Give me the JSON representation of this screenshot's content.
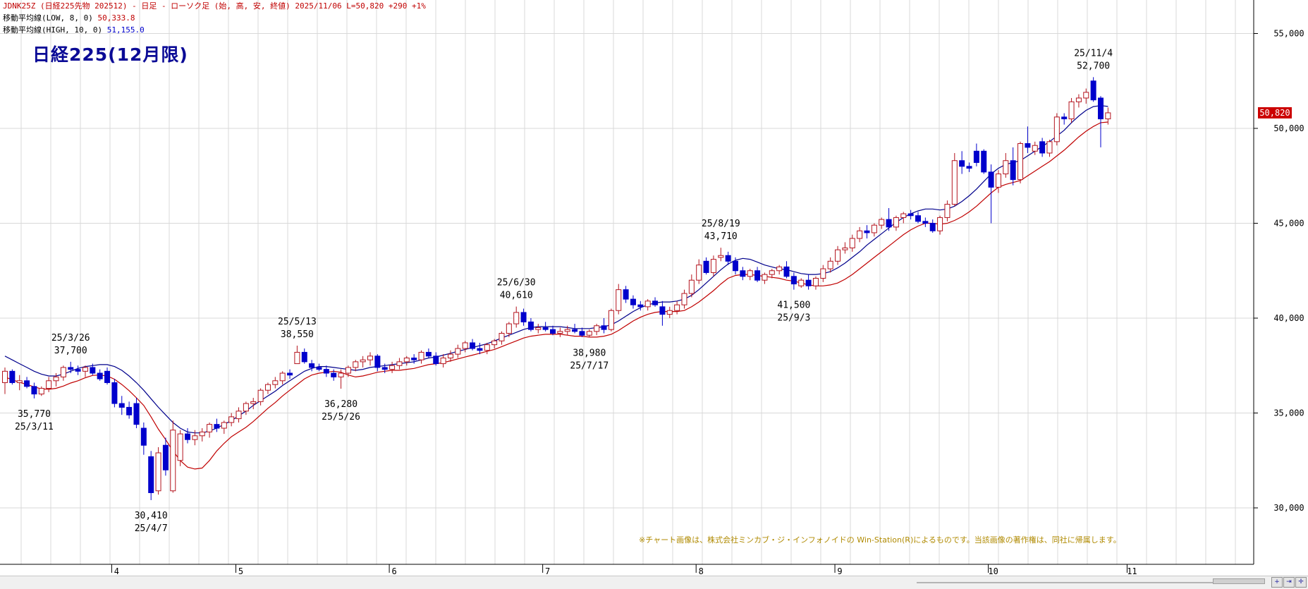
{
  "header": {
    "line1": "JDNK25Z (日経225先物 202512) - 日足 - ローソク足 (始, 高, 安, 終値) 2025/11/06 L=50,820 +290 +1%",
    "line2_label": "移動平均線(LOW, 8, 0)",
    "line2_value": "50,333.8",
    "line3_label": "移動平均線(HIGH, 10, 0)",
    "line3_value": "51,155.0"
  },
  "notice": "※チャート画像は、株式会社ミンカブ・ジ・インフォノイドの Win-Station(R)によるものです。当該画像の著作権は、同社に帰属します。",
  "colors": {
    "up": "#b4141e",
    "down": "#0000cc",
    "ma_low": "#c00000",
    "ma_high": "#00008c",
    "grid": "#d8d8d8",
    "last_price": "#cc0000"
  },
  "toolbar_icons": [
    "zoom-in-icon",
    "scroll-end-icon",
    "crosshair-icon"
  ],
  "chart_data": {
    "type": "candlestick",
    "title": "日経225(12月限)",
    "y_axis": {
      "ticks": [
        30000,
        35000,
        40000,
        45000,
        50000,
        55000
      ],
      "tick_labels": [
        "30,000",
        "35,000",
        "40,000",
        "45,000",
        "50,000",
        "55,000"
      ],
      "position": "right"
    },
    "x_axis": {
      "month_labels": [
        "4",
        "5",
        "6",
        "7",
        "8",
        "9",
        "10",
        "11"
      ]
    },
    "last_price_label": "50,820",
    "last_price": 50820,
    "candles": [
      [
        36600,
        37400,
        36000,
        37200
      ],
      [
        37200,
        37300,
        36500,
        36600
      ],
      [
        36600,
        37000,
        36200,
        36700
      ],
      [
        36700,
        36900,
        36300,
        36400
      ],
      [
        36400,
        36600,
        35770,
        36000
      ],
      [
        36000,
        36400,
        35900,
        36300
      ],
      [
        36300,
        36900,
        36100,
        36700
      ],
      [
        36700,
        37100,
        36400,
        36900
      ],
      [
        36900,
        37500,
        36700,
        37400
      ],
      [
        37400,
        37700,
        37100,
        37300
      ],
      [
        37300,
        37500,
        37000,
        37200
      ],
      [
        37200,
        37500,
        36900,
        37400
      ],
      [
        37400,
        37600,
        37000,
        37100
      ],
      [
        37100,
        37300,
        36700,
        36800
      ],
      [
        37200,
        37400,
        36500,
        36600
      ],
      [
        36600,
        36800,
        35300,
        35500
      ],
      [
        35500,
        35900,
        34900,
        35300
      ],
      [
        35300,
        35600,
        34700,
        34900
      ],
      [
        35500,
        35800,
        34200,
        34400
      ],
      [
        34200,
        34500,
        32800,
        33300
      ],
      [
        32700,
        33000,
        30410,
        30800
      ],
      [
        30900,
        33200,
        30700,
        32900
      ],
      [
        33300,
        33700,
        31700,
        32000
      ],
      [
        30900,
        34600,
        30800,
        34100
      ],
      [
        32500,
        34100,
        32200,
        33900
      ],
      [
        33900,
        34200,
        33400,
        33600
      ],
      [
        33600,
        34100,
        33300,
        33800
      ],
      [
        33800,
        34200,
        33500,
        34000
      ],
      [
        34000,
        34500,
        33700,
        34400
      ],
      [
        34400,
        34700,
        34000,
        34200
      ],
      [
        34200,
        34600,
        33900,
        34500
      ],
      [
        34500,
        35000,
        34300,
        34800
      ],
      [
        34700,
        35300,
        34500,
        35100
      ],
      [
        35100,
        35600,
        34900,
        35500
      ],
      [
        35500,
        35800,
        35200,
        35600
      ],
      [
        35600,
        36300,
        35400,
        36200
      ],
      [
        36200,
        36600,
        36000,
        36500
      ],
      [
        36500,
        36900,
        36300,
        36700
      ],
      [
        36700,
        37200,
        36500,
        37100
      ],
      [
        37100,
        37300,
        36800,
        37000
      ],
      [
        37600,
        38550,
        37600,
        38200
      ],
      [
        38200,
        38400,
        37600,
        37700
      ],
      [
        37600,
        37800,
        37200,
        37400
      ],
      [
        37400,
        37600,
        37200,
        37300
      ],
      [
        37300,
        37500,
        36900,
        37100
      ],
      [
        37100,
        37300,
        36700,
        36900
      ],
      [
        36900,
        37300,
        36280,
        37100
      ],
      [
        37100,
        37500,
        36900,
        37400
      ],
      [
        37400,
        37800,
        37200,
        37700
      ],
      [
        37700,
        38000,
        37400,
        37800
      ],
      [
        37800,
        38200,
        37500,
        38000
      ],
      [
        38000,
        38100,
        37200,
        37400
      ],
      [
        37400,
        37600,
        37100,
        37300
      ],
      [
        37300,
        37700,
        37100,
        37500
      ],
      [
        37500,
        37900,
        37300,
        37700
      ],
      [
        37700,
        38000,
        37500,
        37900
      ],
      [
        37900,
        38100,
        37600,
        37800
      ],
      [
        37800,
        38300,
        37600,
        38200
      ],
      [
        38200,
        38400,
        37900,
        38000
      ],
      [
        38000,
        38200,
        37500,
        37600
      ],
      [
        37600,
        38100,
        37400,
        37900
      ],
      [
        37900,
        38300,
        37700,
        38100
      ],
      [
        38100,
        38600,
        37900,
        38400
      ],
      [
        38400,
        38800,
        38200,
        38700
      ],
      [
        38700,
        38900,
        38300,
        38400
      ],
      [
        38400,
        38700,
        38100,
        38300
      ],
      [
        38300,
        38700,
        38100,
        38600
      ],
      [
        38600,
        38900,
        38400,
        38800
      ],
      [
        38800,
        39300,
        38600,
        39200
      ],
      [
        39200,
        39800,
        39000,
        39700
      ],
      [
        39700,
        40610,
        39500,
        40300
      ],
      [
        40300,
        40500,
        39600,
        39800
      ],
      [
        39800,
        40000,
        39300,
        39400
      ],
      [
        39400,
        39700,
        39200,
        39500
      ],
      [
        39500,
        39800,
        39300,
        39400
      ],
      [
        39400,
        39600,
        39100,
        39200
      ],
      [
        39200,
        39500,
        39000,
        39300
      ],
      [
        39300,
        39600,
        39100,
        39400
      ],
      [
        39400,
        39700,
        39200,
        39300
      ],
      [
        39300,
        39500,
        39000,
        39100
      ],
      [
        39100,
        39400,
        38980,
        39300
      ],
      [
        39300,
        39700,
        39100,
        39600
      ],
      [
        39600,
        40000,
        39200,
        39400
      ],
      [
        39400,
        40500,
        39300,
        40400
      ],
      [
        40400,
        41800,
        40200,
        41500
      ],
      [
        41500,
        41700,
        40800,
        41000
      ],
      [
        41000,
        41200,
        40500,
        40700
      ],
      [
        40700,
        40900,
        40400,
        40600
      ],
      [
        40600,
        41000,
        40400,
        40900
      ],
      [
        40900,
        41100,
        40600,
        40700
      ],
      [
        40600,
        40900,
        39600,
        40200
      ],
      [
        40200,
        40600,
        40000,
        40400
      ],
      [
        40400,
        40900,
        40200,
        40700
      ],
      [
        40700,
        41500,
        40500,
        41300
      ],
      [
        41300,
        42300,
        41100,
        42000
      ],
      [
        42000,
        43100,
        41800,
        42800
      ],
      [
        43000,
        43200,
        42300,
        42400
      ],
      [
        42400,
        43300,
        42200,
        43100
      ],
      [
        43200,
        43710,
        43000,
        43300
      ],
      [
        43300,
        43500,
        42800,
        43000
      ],
      [
        43000,
        43200,
        42300,
        42500
      ],
      [
        42500,
        42700,
        42000,
        42200
      ],
      [
        42200,
        42600,
        42000,
        42500
      ],
      [
        42500,
        42700,
        41900,
        42000
      ],
      [
        42000,
        42400,
        41800,
        42300
      ],
      [
        42300,
        42600,
        42100,
        42500
      ],
      [
        42500,
        42800,
        42300,
        42700
      ],
      [
        42700,
        43000,
        42100,
        42200
      ],
      [
        42200,
        42400,
        41500,
        41800
      ],
      [
        41700,
        42100,
        41600,
        42000
      ],
      [
        42000,
        42300,
        41500,
        41700
      ],
      [
        41700,
        42200,
        41500,
        42100
      ],
      [
        42100,
        42800,
        41900,
        42600
      ],
      [
        42600,
        43200,
        42400,
        43000
      ],
      [
        43000,
        43800,
        42800,
        43600
      ],
      [
        43600,
        44000,
        43400,
        43700
      ],
      [
        43700,
        44400,
        43500,
        44200
      ],
      [
        44200,
        44800,
        44000,
        44600
      ],
      [
        44600,
        44900,
        44200,
        44500
      ],
      [
        44500,
        45000,
        44300,
        44900
      ],
      [
        44900,
        45300,
        44700,
        45200
      ],
      [
        45200,
        45800,
        44600,
        44800
      ],
      [
        44800,
        45400,
        44600,
        45300
      ],
      [
        45300,
        45600,
        45000,
        45500
      ],
      [
        45500,
        45700,
        45200,
        45400
      ],
      [
        45400,
        45600,
        45000,
        45100
      ],
      [
        45100,
        45300,
        44800,
        45000
      ],
      [
        45000,
        45200,
        44500,
        44600
      ],
      [
        44600,
        45400,
        44400,
        45300
      ],
      [
        45300,
        46200,
        45100,
        46000
      ],
      [
        46000,
        48700,
        45900,
        48300
      ],
      [
        48300,
        48800,
        47600,
        48000
      ],
      [
        48000,
        48200,
        47700,
        47900
      ],
      [
        48800,
        49200,
        48000,
        48200
      ],
      [
        48800,
        48900,
        47600,
        47700
      ],
      [
        47700,
        48100,
        45000,
        46900
      ],
      [
        46900,
        47800,
        46600,
        47600
      ],
      [
        47600,
        48700,
        47400,
        48300
      ],
      [
        48300,
        49000,
        47000,
        47300
      ],
      [
        47300,
        49300,
        47100,
        49200
      ],
      [
        49200,
        50100,
        48700,
        49000
      ],
      [
        48800,
        49300,
        48600,
        49100
      ],
      [
        49300,
        49500,
        48500,
        48700
      ],
      [
        48700,
        49400,
        48500,
        49300
      ],
      [
        49300,
        50800,
        49100,
        50600
      ],
      [
        50600,
        50800,
        50200,
        50500
      ],
      [
        50500,
        51600,
        50300,
        51400
      ],
      [
        51400,
        51800,
        51100,
        51600
      ],
      [
        51600,
        52100,
        51300,
        51900
      ],
      [
        52500,
        52700,
        51400,
        51500
      ],
      [
        51600,
        51700,
        49000,
        50500
      ],
      [
        50500,
        51100,
        50200,
        50820
      ]
    ],
    "ma_low_8": [
      36900,
      36750,
      36620,
      36500,
      36380,
      36270,
      36250,
      36300,
      36420,
      36580,
      36700,
      36860,
      36980,
      37000,
      36950,
      36780,
      36500,
      36180,
      35800,
      35400,
      34800,
      34150,
      33600,
      33000,
      32500,
      32150,
      32050,
      32100,
      32500,
      33000,
      33400,
      33750,
      34000,
      34250,
      34550,
      34900,
      35250,
      35550,
      35900,
      36200,
      36500,
      36800,
      37000,
      37100,
      37150,
      37200,
      37150,
      37000,
      36900,
      36950,
      37050,
      37150,
      37200,
      37250,
      37250,
      37300,
      37350,
      37450,
      37550,
      37600,
      37650,
      37750,
      37850,
      37950,
      38050,
      38150,
      38250,
      38350,
      38500,
      38650,
      38800,
      38950,
      39050,
      39100,
      39150,
      39150,
      39150,
      39100,
      39050,
      39050,
      39000,
      39000,
      39050,
      39150,
      39350,
      39600,
      39850,
      40050,
      40200,
      40300,
      40350,
      40350,
      40350,
      40400,
      40600,
      40850,
      41150,
      41450,
      41800,
      42100,
      42250,
      42300,
      42300,
      42250,
      42200,
      42150,
      42100,
      42000,
      41950,
      41850,
      41750,
      41700,
      41700,
      41750,
      41850,
      42050,
      42300,
      42600,
      42900,
      43200,
      43500,
      43800,
      44100,
      44400,
      44650,
      44850,
      45000,
      45000,
      44950,
      45000,
      45150,
      45350,
      45600,
      45900,
      46250,
      46600,
      46900,
      47050,
      47150,
      47250,
      47500,
      47750,
      48000,
      48250,
      48550,
      48850,
      49200,
      49550,
      49850,
      50100,
      50300,
      50334
    ],
    "ma_high_10": [
      38000,
      37800,
      37600,
      37400,
      37200,
      37050,
      36950,
      36950,
      37050,
      37200,
      37350,
      37450,
      37500,
      37550,
      37550,
      37450,
      37250,
      36950,
      36600,
      36200,
      35750,
      35300,
      34900,
      34500,
      34200,
      34000,
      33950,
      33950,
      34050,
      34200,
      34400,
      34600,
      34850,
      35100,
      35400,
      35650,
      35900,
      36150,
      36450,
      36700,
      36950,
      37200,
      37350,
      37450,
      37450,
      37400,
      37350,
      37300,
      37250,
      37300,
      37400,
      37450,
      37500,
      37550,
      37600,
      37650,
      37700,
      37800,
      37900,
      37950,
      38050,
      38150,
      38250,
      38350,
      38450,
      38550,
      38650,
      38800,
      38950,
      39100,
      39250,
      39400,
      39500,
      39550,
      39550,
      39550,
      39550,
      39500,
      39450,
      39450,
      39450,
      39500,
      39550,
      39650,
      39850,
      40100,
      40350,
      40550,
      40700,
      40800,
      40850,
      40850,
      40900,
      41000,
      41200,
      41500,
      41850,
      42200,
      42550,
      42850,
      43050,
      43150,
      43100,
      42950,
      42800,
      42700,
      42600,
      42550,
      42450,
      42350,
      42300,
      42300,
      42350,
      42450,
      42650,
      42900,
      43200,
      43500,
      43850,
      44150,
      44450,
      44750,
      45050,
      45300,
      45500,
      45650,
      45750,
      45750,
      45700,
      45750,
      45900,
      46150,
      46450,
      46800,
      47200,
      47600,
      47900,
      48100,
      48200,
      48300,
      48550,
      48800,
      49050,
      49300,
      49600,
      49900,
      50300,
      50650,
      50950,
      51150,
      51200,
      51155
    ],
    "annotations": [
      {
        "date": "25/3/11",
        "price": "35,770",
        "candle": 4,
        "position": "below"
      },
      {
        "date": "25/3/26",
        "price": "37,700",
        "candle": 9,
        "position": "above"
      },
      {
        "date": "25/4/7",
        "price": "30,410",
        "candle": 20,
        "position": "below"
      },
      {
        "date": "25/5/13",
        "price": "38,550",
        "candle": 40,
        "position": "above"
      },
      {
        "date": "25/5/26",
        "price": "36,280",
        "candle": 46,
        "position": "below"
      },
      {
        "date": "25/6/30",
        "price": "40,610",
        "candle": 70,
        "position": "above"
      },
      {
        "date": "25/7/17",
        "price": "38,980",
        "candle": 80,
        "position": "below"
      },
      {
        "date": "25/8/19",
        "price": "43,710",
        "candle": 98,
        "position": "above"
      },
      {
        "date": "25/9/3",
        "price": "41,500",
        "candle": 108,
        "position": "below"
      },
      {
        "date": "25/11/4",
        "price": "52,700",
        "candle": 149,
        "position": "above"
      }
    ],
    "grid": true
  }
}
